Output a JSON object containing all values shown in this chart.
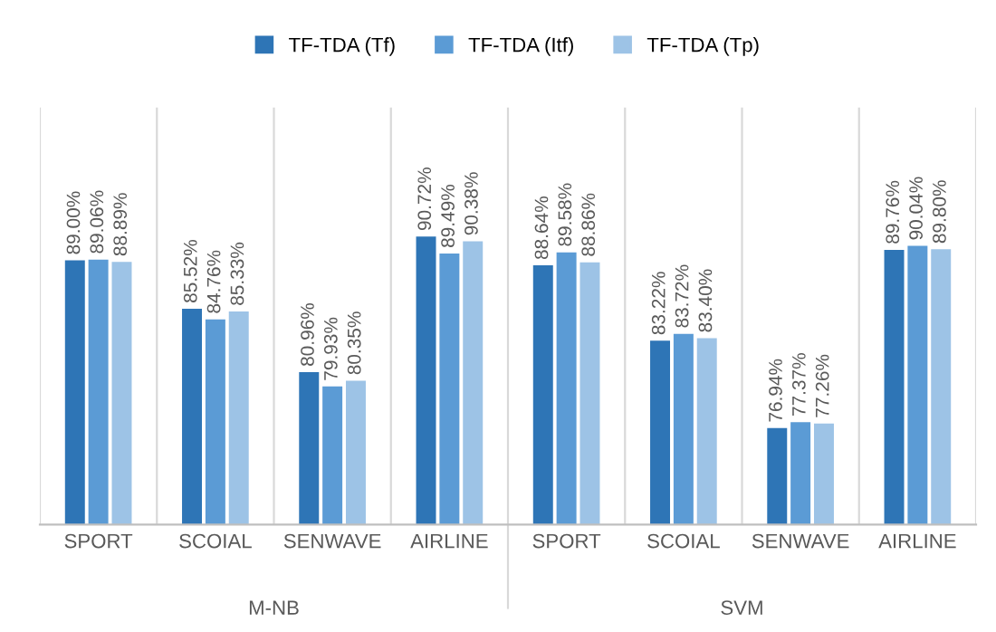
{
  "chart_data": {
    "type": "bar",
    "categories": [
      "SPORT",
      "SCOIAL",
      "SENWAVE",
      "AIRLINE",
      "SPORT",
      "SCOIAL",
      "SENWAVE",
      "AIRLINE"
    ],
    "series": [
      {
        "name": "TF-TDA (Tf)",
        "color": "#2e75b6",
        "values": [
          89.0,
          85.52,
          80.96,
          90.72,
          88.64,
          83.22,
          76.94,
          89.76
        ],
        "value_labels": [
          "89.00%",
          "85.52%",
          "80.96%",
          "90.72%",
          "88.64%",
          "83.22%",
          "76.94%",
          "89.76%"
        ]
      },
      {
        "name": "TF-TDA (Itf)",
        "color": "#5b9bd5",
        "values": [
          89.06,
          84.76,
          79.93,
          89.49,
          89.58,
          83.72,
          77.37,
          90.04
        ],
        "value_labels": [
          "89.06%",
          "84.76%",
          "79.93%",
          "89.49%",
          "89.58%",
          "83.72%",
          "77.37%",
          "90.04%"
        ]
      },
      {
        "name": "TF-TDA (Tp)",
        "color": "#9dc3e6",
        "values": [
          88.89,
          85.33,
          80.35,
          90.38,
          88.86,
          83.4,
          77.26,
          89.8
        ],
        "value_labels": [
          "88.89%",
          "85.33%",
          "80.35%",
          "90.38%",
          "88.86%",
          "83.40%",
          "77.26%",
          "89.80%"
        ]
      }
    ],
    "annotations": [
      "M-NB",
      "SVM"
    ],
    "ylim": [
      70,
      100
    ],
    "tick_labels": "x",
    "grid": "x",
    "legend": "top"
  }
}
